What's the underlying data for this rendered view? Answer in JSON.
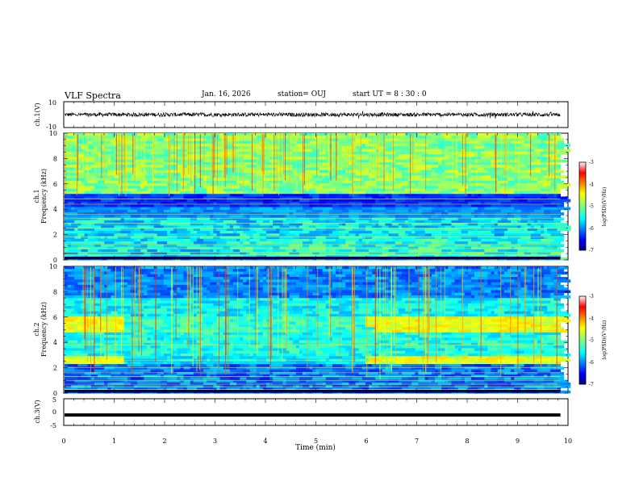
{
  "header": {
    "title": "VLF Spectra",
    "date": "Jan. 16, 2026",
    "station": "station= OUJ",
    "start_ut": "start  UT =   8 : 30 : 0"
  },
  "chart_data": [
    {
      "type": "line",
      "panel": "ch1-waveform",
      "ylabel": "ch.1(V)",
      "ylim": [
        -10,
        10
      ],
      "yticks": [
        "10",
        "-10"
      ],
      "xlim": [
        0,
        9.85
      ],
      "series": [
        {
          "baseline": 0,
          "approx_amplitude": 1.5
        }
      ]
    },
    {
      "type": "heatmap",
      "panel": "ch1-spectrogram",
      "ylabel_line1": "ch.1",
      "ylabel_line2": "Frequency (kHz)",
      "ylim": [
        0,
        10
      ],
      "yticks": [
        "0",
        "2",
        "4",
        "6",
        "8",
        "10"
      ],
      "xlim": [
        0,
        9.85
      ],
      "colorbar": {
        "label": "log(PSD)(V²/Hz)",
        "range": [
          -7,
          -3
        ],
        "ticks": [
          "-3",
          "-4",
          "-5",
          "-6",
          "-7"
        ]
      }
    },
    {
      "type": "heatmap",
      "panel": "ch2-spectrogram",
      "ylabel_line1": "ch.2",
      "ylabel_line2": "Frequency (kHz)",
      "ylim": [
        0,
        10
      ],
      "yticks": [
        "0",
        "2",
        "4",
        "6",
        "8",
        "10"
      ],
      "xlim": [
        0,
        9.85
      ],
      "colorbar": {
        "label": "log(PSD)(V²/Hz)",
        "range": [
          -7,
          -3
        ],
        "ticks": [
          "-3",
          "-4",
          "-5",
          "-6",
          "-7"
        ]
      }
    },
    {
      "type": "line",
      "panel": "ch3-waveform",
      "ylabel": "ch.3(V)",
      "ylim": [
        -5,
        5
      ],
      "yticks": [
        "5",
        "0",
        "-5"
      ],
      "xlim": [
        0,
        9.85
      ],
      "series": [
        {
          "constant_value": -1.1
        }
      ]
    }
  ],
  "xaxis": {
    "label": "Time (min)",
    "range": [
      0,
      10
    ],
    "ticks": [
      "0",
      "1",
      "2",
      "3",
      "4",
      "5",
      "6",
      "7",
      "8",
      "9",
      "10"
    ]
  },
  "colors": {
    "background": "#ffffff",
    "axis": "#000000"
  },
  "colormap": "jet"
}
